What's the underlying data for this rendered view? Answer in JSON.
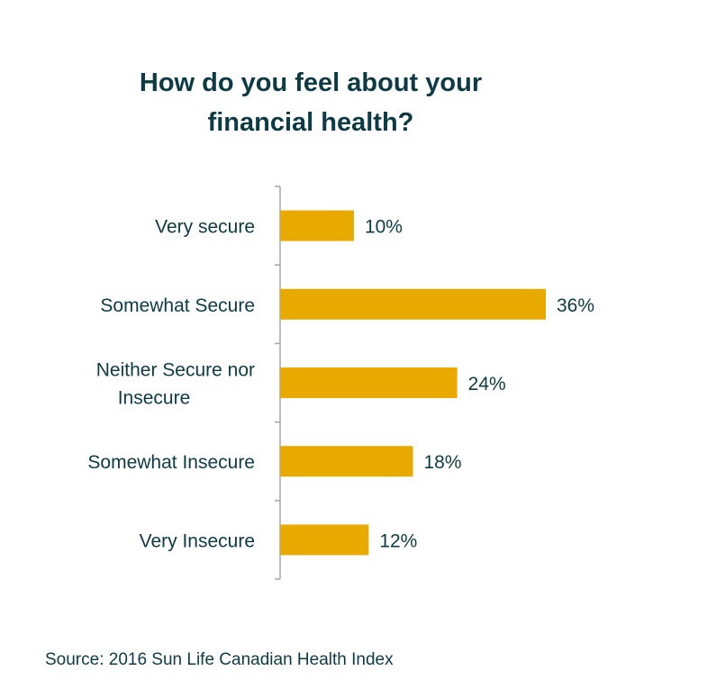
{
  "title_lines": [
    "How do you feel about your",
    "financial health?"
  ],
  "source": "Source: 2016 Sun Life Canadian Health Index",
  "colors": {
    "bar": "#E8AA00",
    "text": "#0d3b45",
    "axis": "#a6a6a6"
  },
  "chart_data": {
    "type": "bar",
    "orientation": "horizontal",
    "title": "How do you feel about your financial health?",
    "categories": [
      [
        "Very secure"
      ],
      [
        "Somewhat Secure"
      ],
      [
        "Neither Secure nor",
        "Insecure"
      ],
      [
        "Somewhat Insecure"
      ],
      [
        "Very Insecure"
      ]
    ],
    "values": [
      10,
      36,
      24,
      18,
      12
    ],
    "data_labels": [
      "10%",
      "36%",
      "24%",
      "18%",
      "12%"
    ],
    "unit": "%",
    "xlim": [
      0,
      40
    ],
    "grid": false,
    "legend": "none"
  }
}
